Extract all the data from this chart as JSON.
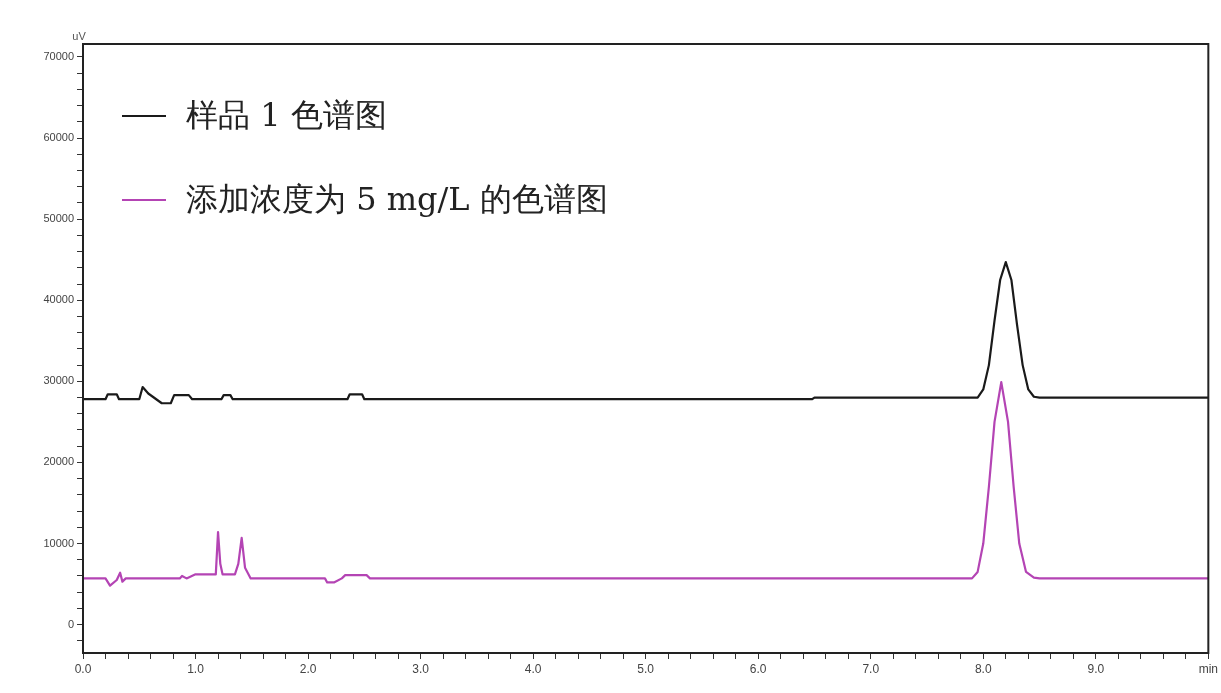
{
  "chart_data": {
    "type": "line",
    "ylabel": "uV",
    "legend": "top left",
    "grid": false,
    "marker": "none",
    "line_style": "solid",
    "xlim": [
      0,
      10
    ],
    "ylim": [
      -3500,
      71600
    ],
    "xticks": [
      {
        "value": 0,
        "label": "0.0"
      },
      {
        "value": 0.2,
        "label": null
      },
      {
        "value": 0.4,
        "label": null
      },
      {
        "value": 0.6,
        "label": null
      },
      {
        "value": 0.8,
        "label": null
      },
      {
        "value": 1,
        "label": "1.0"
      },
      {
        "value": 1.2,
        "label": null
      },
      {
        "value": 1.4,
        "label": null
      },
      {
        "value": 1.6,
        "label": null
      },
      {
        "value": 1.8,
        "label": null
      },
      {
        "value": 2,
        "label": "2.0"
      },
      {
        "value": 2.2,
        "label": null
      },
      {
        "value": 2.4,
        "label": null
      },
      {
        "value": 2.6,
        "label": null
      },
      {
        "value": 2.8,
        "label": null
      },
      {
        "value": 3,
        "label": "3.0"
      },
      {
        "value": 3.2,
        "label": null
      },
      {
        "value": 3.4,
        "label": null
      },
      {
        "value": 3.6,
        "label": null
      },
      {
        "value": 3.8,
        "label": null
      },
      {
        "value": 4,
        "label": "4.0"
      },
      {
        "value": 4.2,
        "label": null
      },
      {
        "value": 4.4,
        "label": null
      },
      {
        "value": 4.6,
        "label": null
      },
      {
        "value": 4.8,
        "label": null
      },
      {
        "value": 5,
        "label": "5.0"
      },
      {
        "value": 5.2,
        "label": null
      },
      {
        "value": 5.4,
        "label": null
      },
      {
        "value": 5.6,
        "label": null
      },
      {
        "value": 5.8,
        "label": null
      },
      {
        "value": 6,
        "label": "6.0"
      },
      {
        "value": 6.2,
        "label": null
      },
      {
        "value": 6.4,
        "label": null
      },
      {
        "value": 6.6,
        "label": null
      },
      {
        "value": 6.8,
        "label": null
      },
      {
        "value": 7,
        "label": "7.0"
      },
      {
        "value": 7.2,
        "label": null
      },
      {
        "value": 7.4,
        "label": null
      },
      {
        "value": 7.6,
        "label": null
      },
      {
        "value": 7.8,
        "label": null
      },
      {
        "value": 8,
        "label": "8.0"
      },
      {
        "value": 8.2,
        "label": null
      },
      {
        "value": 8.4,
        "label": null
      },
      {
        "value": 8.6,
        "label": null
      },
      {
        "value": 8.8,
        "label": null
      },
      {
        "value": 9,
        "label": "9.0"
      },
      {
        "value": 9.2,
        "label": null
      },
      {
        "value": 9.4,
        "label": null
      },
      {
        "value": 9.6,
        "label": null
      },
      {
        "value": 9.8,
        "label": null
      },
      {
        "value": 10,
        "label": "min"
      }
    ],
    "yticks": [
      {
        "value": -2000,
        "label": null
      },
      0,
      {
        "value": 2000,
        "label": null
      },
      {
        "value": 4000,
        "label": null
      },
      {
        "value": 6000,
        "label": null
      },
      {
        "value": 8000,
        "label": null
      },
      10000,
      {
        "value": 12000,
        "label": null
      },
      {
        "value": 14000,
        "label": null
      },
      {
        "value": 16000,
        "label": null
      },
      {
        "value": 18000,
        "label": null
      },
      20000,
      {
        "value": 22000,
        "label": null
      },
      {
        "value": 24000,
        "label": null
      },
      {
        "value": 26000,
        "label": null
      },
      {
        "value": 28000,
        "label": null
      },
      30000,
      {
        "value": 32000,
        "label": null
      },
      {
        "value": 34000,
        "label": null
      },
      {
        "value": 36000,
        "label": null
      },
      {
        "value": 38000,
        "label": null
      },
      40000,
      {
        "value": 42000,
        "label": null
      },
      {
        "value": 44000,
        "label": null
      },
      {
        "value": 46000,
        "label": null
      },
      {
        "value": 48000,
        "label": null
      },
      50000,
      {
        "value": 52000,
        "label": null
      },
      {
        "value": 54000,
        "label": null
      },
      {
        "value": 56000,
        "label": null
      },
      {
        "value": 58000,
        "label": null
      },
      60000,
      {
        "value": 62000,
        "label": null
      },
      {
        "value": 64000,
        "label": null
      },
      {
        "value": 66000,
        "label": null
      },
      {
        "value": 68000,
        "label": null
      },
      70000
    ],
    "series": [
      {
        "name": "样品 1 色谱图",
        "color": "#1a1a1a",
        "x": [
          0,
          0.2,
          0.22,
          0.3,
          0.32,
          0.5,
          0.53,
          0.58,
          0.7,
          0.78,
          0.81,
          0.94,
          0.97,
          1.23,
          1.25,
          1.31,
          1.33,
          2.35,
          2.37,
          2.48,
          2.5,
          6.48,
          6.5,
          7.95,
          8.0,
          8.05,
          8.1,
          8.15,
          8.2,
          8.25,
          8.3,
          8.35,
          8.4,
          8.45,
          8.5,
          10
        ],
        "values": [
          27800,
          27800,
          28400,
          28400,
          27800,
          27800,
          29300,
          28500,
          27300,
          27300,
          28300,
          28300,
          27800,
          27800,
          28300,
          28300,
          27800,
          27800,
          28400,
          28400,
          27800,
          27800,
          28000,
          28000,
          29000,
          32000,
          37500,
          42500,
          44700,
          42500,
          37000,
          32000,
          29000,
          28100,
          28000,
          28000
        ]
      },
      {
        "name": "添加浓度为 5 mg/L  的色谱图",
        "color": "#b444b4",
        "x": [
          0,
          0.2,
          0.24,
          0.3,
          0.33,
          0.35,
          0.38,
          0.5,
          0.86,
          0.88,
          0.92,
          1.0,
          1.18,
          1.2,
          1.22,
          1.24,
          1.35,
          1.38,
          1.41,
          1.44,
          1.49,
          2.15,
          2.17,
          2.23,
          2.3,
          2.33,
          2.52,
          2.55,
          7.9,
          7.95,
          8.0,
          8.05,
          8.1,
          8.16,
          8.22,
          8.27,
          8.32,
          8.38,
          8.45,
          8.5,
          10
        ],
        "values": [
          5700,
          5700,
          4800,
          5500,
          6400,
          5300,
          5700,
          5700,
          5700,
          6000,
          5700,
          6200,
          6200,
          11400,
          7500,
          6200,
          6200,
          7500,
          10700,
          7000,
          5700,
          5700,
          5200,
          5200,
          5700,
          6100,
          6100,
          5700,
          5700,
          6500,
          10000,
          17000,
          25000,
          29900,
          25000,
          17000,
          10000,
          6500,
          5800,
          5700,
          5700
        ]
      }
    ]
  }
}
